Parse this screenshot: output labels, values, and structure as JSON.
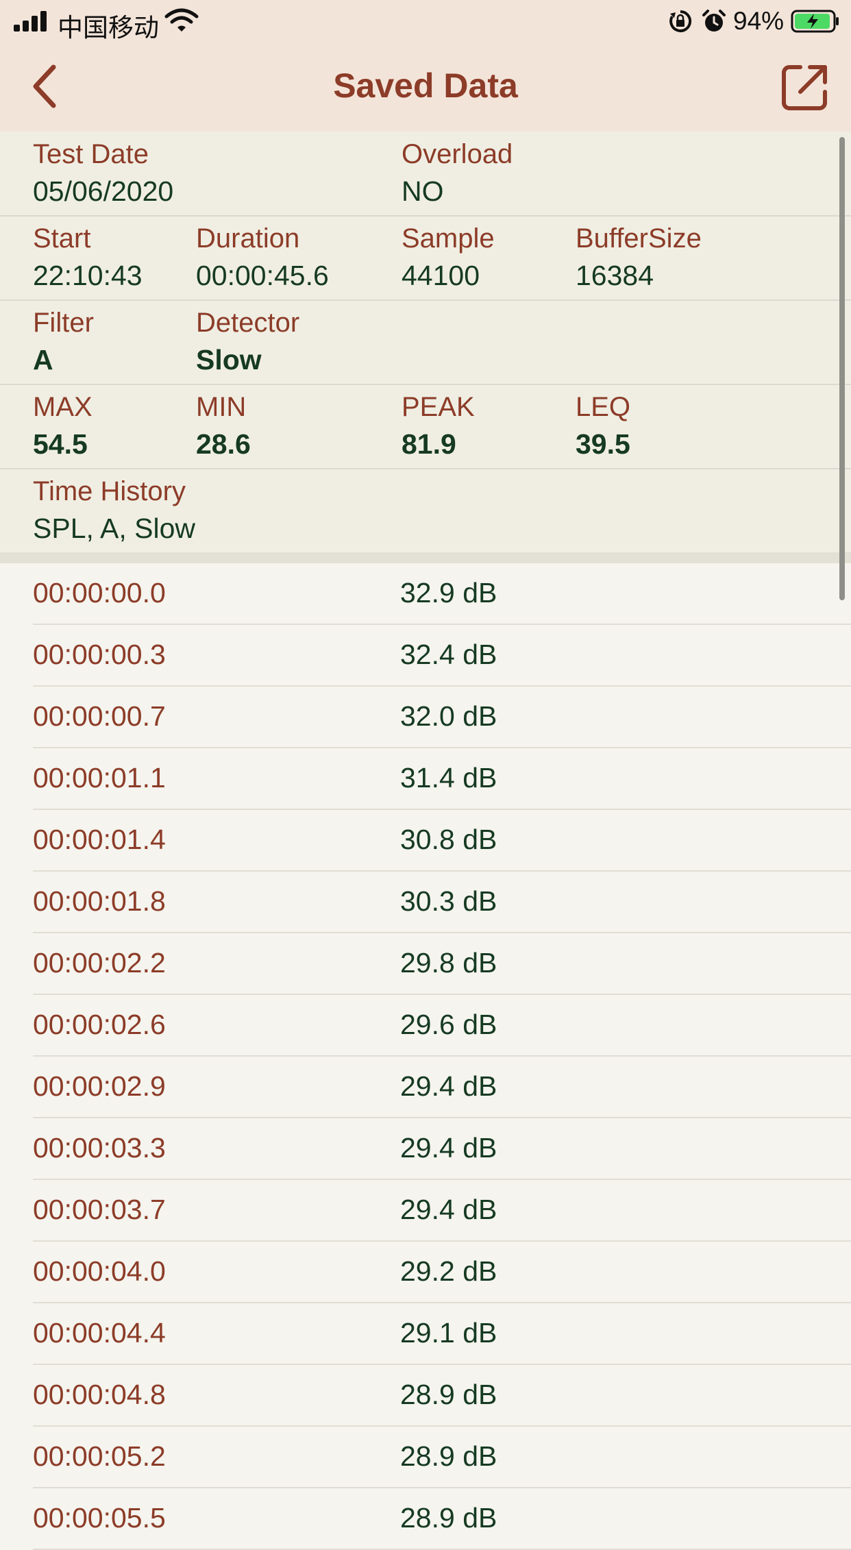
{
  "status_bar": {
    "carrier": "中国移动",
    "battery_percent": "94%",
    "battery_level": 0.94,
    "icons": [
      "signal-icon",
      "wifi-icon",
      "orientation-lock-icon",
      "alarm-icon",
      "battery-icon"
    ]
  },
  "nav": {
    "title": "Saved Data",
    "back_icon": "chevron-left-icon",
    "share_icon": "share-icon"
  },
  "info": {
    "test_date_label": "Test Date",
    "test_date": "05/06/2020",
    "overload_label": "Overload",
    "overload": "NO",
    "start_label": "Start",
    "start": "22:10:43",
    "duration_label": "Duration",
    "duration": "00:00:45.6",
    "sample_label": "Sample",
    "sample": "44100",
    "buffer_label": "BufferSize",
    "buffer": "16384",
    "filter_label": "Filter",
    "filter": "A",
    "detector_label": "Detector",
    "detector": "Slow",
    "max_label": "MAX",
    "max": "54.5",
    "min_label": "MIN",
    "min": "28.6",
    "peak_label": "PEAK",
    "peak": "81.9",
    "leq_label": "LEQ",
    "leq": "39.5",
    "history_label": "Time History",
    "history": "SPL, A, Slow"
  },
  "readings": [
    {
      "time": "00:00:00.0",
      "value": "32.9 dB"
    },
    {
      "time": "00:00:00.3",
      "value": "32.4 dB"
    },
    {
      "time": "00:00:00.7",
      "value": "32.0 dB"
    },
    {
      "time": "00:00:01.1",
      "value": "31.4 dB"
    },
    {
      "time": "00:00:01.4",
      "value": "30.8 dB"
    },
    {
      "time": "00:00:01.8",
      "value": "30.3 dB"
    },
    {
      "time": "00:00:02.2",
      "value": "29.8 dB"
    },
    {
      "time": "00:00:02.6",
      "value": "29.6 dB"
    },
    {
      "time": "00:00:02.9",
      "value": "29.4 dB"
    },
    {
      "time": "00:00:03.3",
      "value": "29.4 dB"
    },
    {
      "time": "00:00:03.7",
      "value": "29.4 dB"
    },
    {
      "time": "00:00:04.0",
      "value": "29.2 dB"
    },
    {
      "time": "00:00:04.4",
      "value": "29.1 dB"
    },
    {
      "time": "00:00:04.8",
      "value": "28.9 dB"
    },
    {
      "time": "00:00:05.2",
      "value": "28.9 dB"
    },
    {
      "time": "00:00:05.5",
      "value": "28.9 dB"
    }
  ],
  "colors": {
    "accent": "#8c3c28",
    "value": "#163a22",
    "header_bg": "#f3e4d9",
    "battery": "#4cd964"
  }
}
